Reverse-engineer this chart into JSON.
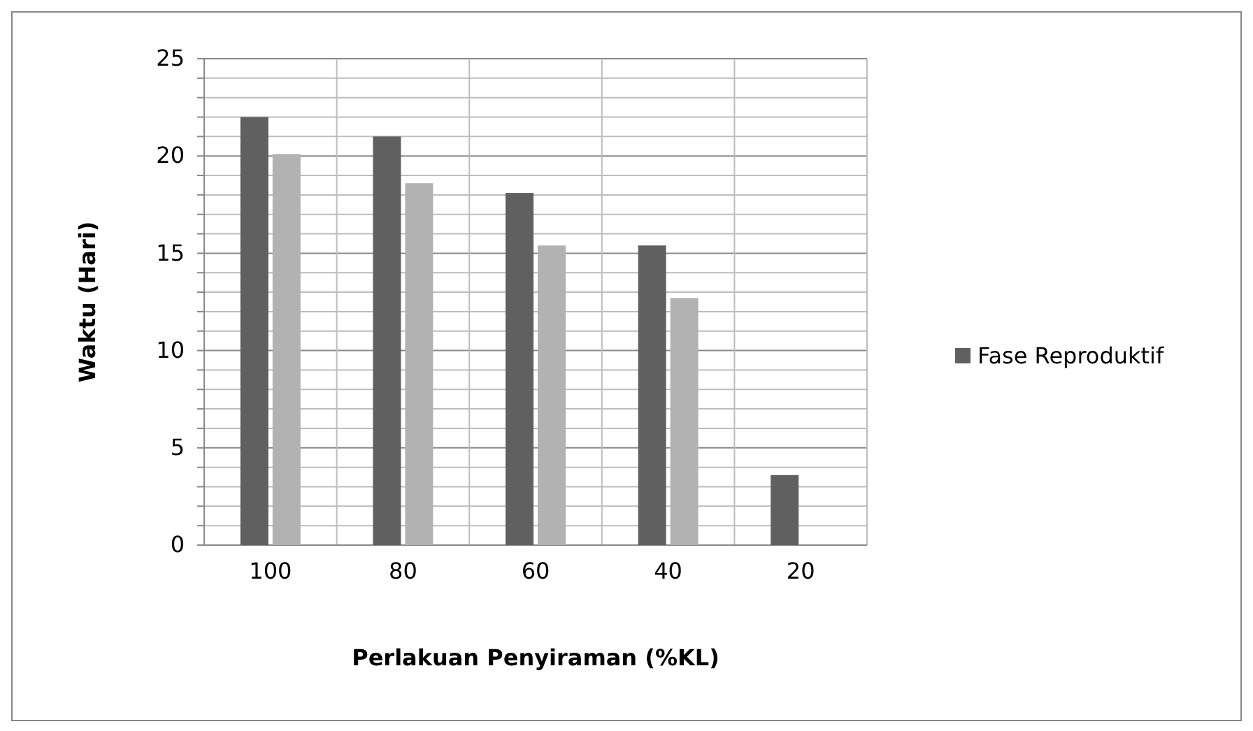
{
  "chart_data": {
    "type": "bar",
    "xlabel": "Perlakuan Penyiraman (%KL)",
    "ylabel": "Waktu (Hari)",
    "categories": [
      "100",
      "80",
      "60",
      "40",
      "20"
    ],
    "series": [
      {
        "name": "Fase Reproduktif",
        "color": "#606060",
        "values": [
          22,
          21,
          18.1,
          15.4,
          3.6
        ]
      },
      {
        "color": "#b2b2b2",
        "values": [
          20.1,
          18.6,
          15.4,
          12.7,
          null
        ]
      }
    ],
    "ylim": [
      0,
      25
    ],
    "yticks": [
      0,
      {
        "value": 1,
        "label": null
      },
      {
        "value": 2,
        "label": null
      },
      {
        "value": 3,
        "label": null
      },
      {
        "value": 4,
        "label": null
      },
      5,
      {
        "value": 6,
        "label": null
      },
      {
        "value": 7,
        "label": null
      },
      {
        "value": 8,
        "label": null
      },
      {
        "value": 9,
        "label": null
      },
      10,
      {
        "value": 11,
        "label": null
      },
      {
        "value": 12,
        "label": null
      },
      {
        "value": 13,
        "label": null
      },
      {
        "value": 14,
        "label": null
      },
      15,
      {
        "value": 16,
        "label": null
      },
      {
        "value": 17,
        "label": null
      },
      {
        "value": 18,
        "label": null
      },
      {
        "value": 19,
        "label": null
      },
      20,
      {
        "value": 21,
        "label": null
      },
      {
        "value": 22,
        "label": null
      },
      {
        "value": 23,
        "label": null
      },
      {
        "value": 24,
        "label": null
      },
      25
    ],
    "grid": true,
    "legend": "right"
  }
}
